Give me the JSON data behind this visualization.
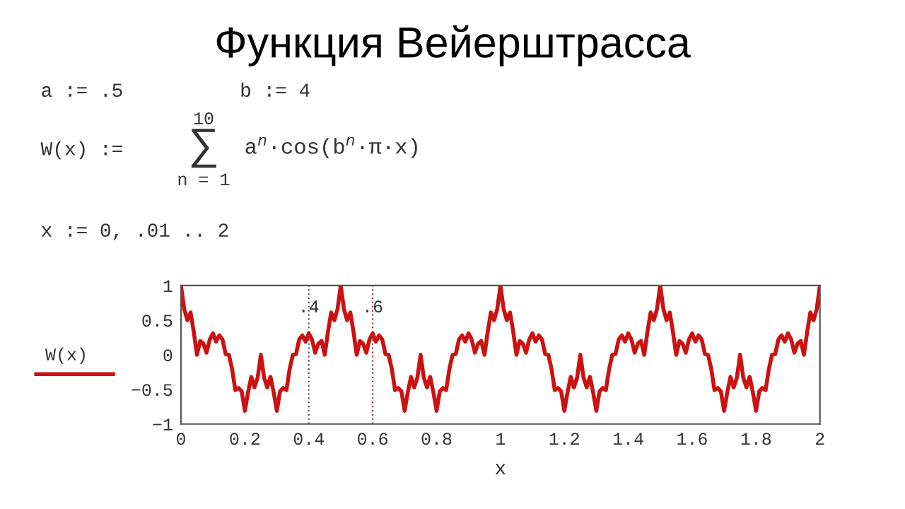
{
  "chart_data": {
    "type": "line",
    "title": "Функция Вейерштрасса",
    "xlabel": "x",
    "ylabel": "W(x)",
    "annotations": [
      "a := .5",
      "b := 4",
      "W(x) :=",
      "∑",
      "10",
      "n = 1",
      "a$^{n}$·cos(b$^{n}$·π·x)",
      "x := 0, .01 .. 2"
    ],
    "x": [
      0,
      0.01,
      0.02,
      0.03,
      0.04,
      0.05,
      0.06,
      0.07,
      0.08,
      0.09,
      0.1,
      0.11,
      0.12,
      0.13,
      0.14,
      0.15,
      0.16,
      0.17,
      0.18,
      0.19,
      0.2,
      0.21,
      0.22,
      0.23,
      0.24,
      0.25,
      0.26,
      0.27,
      0.28,
      0.29,
      0.3,
      0.31,
      0.32,
      0.33,
      0.34,
      0.35,
      0.36,
      0.37,
      0.38,
      0.39,
      0.4,
      0.41,
      0.42,
      0.43,
      0.44,
      0.45,
      0.46,
      0.47,
      0.48,
      0.49,
      0.5,
      0.51,
      0.52,
      0.53,
      0.54,
      0.55,
      0.56,
      0.57,
      0.58,
      0.59,
      0.6,
      0.61,
      0.62,
      0.63,
      0.64,
      0.65,
      0.66,
      0.67,
      0.68,
      0.69,
      0.7,
      0.71,
      0.72,
      0.73,
      0.74,
      0.75,
      0.76,
      0.77,
      0.78,
      0.79,
      0.8,
      0.81,
      0.82,
      0.83,
      0.84,
      0.85,
      0.86,
      0.87,
      0.88,
      0.89,
      0.9,
      0.91,
      0.92,
      0.93,
      0.94,
      0.95,
      0.96,
      0.97,
      0.98,
      0.99,
      1.0,
      1.01,
      1.02,
      1.03,
      1.04,
      1.05,
      1.06,
      1.07,
      1.08,
      1.09,
      1.1,
      1.11,
      1.12,
      1.13,
      1.14,
      1.15,
      1.16,
      1.17,
      1.18,
      1.19,
      1.2,
      1.21,
      1.22,
      1.23,
      1.24,
      1.25,
      1.26,
      1.27,
      1.28,
      1.29,
      1.3,
      1.31,
      1.32,
      1.33,
      1.34,
      1.35,
      1.36,
      1.37,
      1.38,
      1.39,
      1.4,
      1.41,
      1.42,
      1.43,
      1.44,
      1.45,
      1.46,
      1.47,
      1.48,
      1.49,
      1.5,
      1.51,
      1.52,
      1.53,
      1.54,
      1.55,
      1.56,
      1.57,
      1.58,
      1.59,
      1.6,
      1.61,
      1.62,
      1.63,
      1.64,
      1.65,
      1.66,
      1.67,
      1.68,
      1.69,
      1.7,
      1.71,
      1.72,
      1.73,
      1.74,
      1.75,
      1.76,
      1.77,
      1.78,
      1.79,
      1.8,
      1.81,
      1.82,
      1.83,
      1.84,
      1.85,
      1.86,
      1.87,
      1.88,
      1.89,
      1.9,
      1.91,
      1.92,
      1.93,
      1.94,
      1.95,
      1.96,
      1.97,
      1.98,
      1.99,
      2.0
    ],
    "series": [
      {
        "color": "#cc1111",
        "values": [
          1.0,
          0.66,
          0.5,
          0.61,
          0.33,
          0.0,
          0.2,
          0.16,
          0.03,
          0.22,
          0.31,
          0.19,
          0.28,
          0.22,
          0.01,
          0.0,
          -0.21,
          -0.51,
          -0.48,
          -0.53,
          -0.81,
          -0.54,
          -0.32,
          -0.47,
          -0.33,
          0.0,
          -0.33,
          -0.47,
          -0.32,
          -0.54,
          -0.81,
          -0.53,
          -0.48,
          -0.51,
          -0.21,
          0.0,
          0.01,
          0.22,
          0.28,
          0.19,
          0.31,
          0.22,
          0.03,
          0.16,
          0.2,
          0.0,
          0.33,
          0.61,
          0.5,
          0.66,
          1.0,
          0.66,
          0.5,
          0.61,
          0.33,
          0.0,
          0.2,
          0.16,
          0.03,
          0.22,
          0.31,
          0.19,
          0.28,
          0.22,
          0.01,
          0.0,
          -0.21,
          -0.51,
          -0.48,
          -0.53,
          -0.81,
          -0.54,
          -0.32,
          -0.47,
          -0.33,
          0.0,
          -0.33,
          -0.47,
          -0.32,
          -0.54,
          -0.81,
          -0.53,
          -0.48,
          -0.51,
          -0.21,
          0.0,
          0.01,
          0.22,
          0.28,
          0.19,
          0.31,
          0.22,
          0.03,
          0.16,
          0.2,
          0.0,
          0.33,
          0.61,
          0.5,
          0.66,
          1.0,
          0.66,
          0.5,
          0.61,
          0.33,
          0.0,
          0.2,
          0.16,
          0.03,
          0.22,
          0.31,
          0.19,
          0.28,
          0.22,
          0.01,
          0.0,
          -0.21,
          -0.51,
          -0.48,
          -0.53,
          -0.81,
          -0.54,
          -0.32,
          -0.47,
          -0.33,
          0.0,
          -0.33,
          -0.47,
          -0.32,
          -0.54,
          -0.81,
          -0.53,
          -0.48,
          -0.51,
          -0.21,
          0.0,
          0.01,
          0.22,
          0.28,
          0.19,
          0.31,
          0.22,
          0.03,
          0.16,
          0.2,
          0.0,
          0.33,
          0.61,
          0.5,
          0.66,
          1.0,
          0.66,
          0.5,
          0.61,
          0.33,
          0.0,
          0.2,
          0.16,
          0.03,
          0.22,
          0.31,
          0.19,
          0.28,
          0.22,
          0.01,
          0.0,
          -0.21,
          -0.51,
          -0.48,
          -0.53,
          -0.81,
          -0.54,
          -0.32,
          -0.47,
          -0.33,
          0.0,
          -0.33,
          -0.47,
          -0.32,
          -0.54,
          -0.81,
          -0.53,
          -0.48,
          -0.51,
          -0.21,
          0.0,
          0.01,
          0.22,
          0.28,
          0.19,
          0.31,
          0.22,
          0.03,
          0.16,
          0.2,
          0.0,
          0.33,
          0.61,
          0.5,
          0.66,
          1.0
        ]
      }
    ],
    "xlim": [
      0,
      2
    ],
    "ylim": [
      -1,
      1
    ],
    "xticks": [
      0,
      0.2,
      0.4,
      0.6,
      0.8,
      1,
      1.2,
      1.4,
      1.6,
      1.8,
      2
    ],
    "yticks": [
      {
        "value": -1,
        "label": "−1"
      },
      {
        "value": -0.5,
        "label": "−0.5"
      },
      0,
      0.5,
      1
    ],
    "ref_lines": [
      {
        "axis": "x",
        "value": 0.4,
        "label": ".4",
        "color": "#555555",
        "line_style": "dotted"
      },
      {
        "axis": "x",
        "value": 0.6,
        "label": ".6",
        "color": "#b04040",
        "line_style": "dotted"
      }
    ],
    "grid": false,
    "legend": false,
    "marker": "none",
    "line_style": "solid"
  }
}
